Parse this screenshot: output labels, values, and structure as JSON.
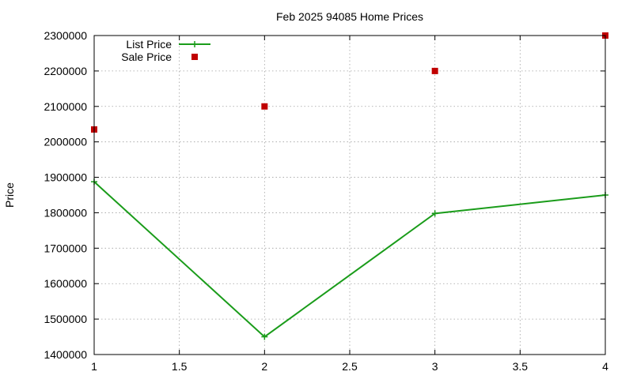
{
  "chart_data": {
    "type": "line",
    "title": "Feb 2025 94085 Home Prices",
    "xlabel": "",
    "ylabel": "Price",
    "xlim": [
      1,
      4
    ],
    "ylim": [
      1400000,
      2300000
    ],
    "xticks": [
      1,
      1.5,
      2,
      2.5,
      3,
      3.5,
      4
    ],
    "xtick_labels": [
      "1",
      "1.5",
      "2",
      "2.5",
      "3",
      "3.5",
      "4"
    ],
    "yticks": [
      1400000,
      1500000,
      1600000,
      1700000,
      1800000,
      1900000,
      2000000,
      2100000,
      2200000,
      2300000
    ],
    "ytick_labels": [
      "1400000",
      "1500000",
      "1600000",
      "1700000",
      "1800000",
      "1900000",
      "2000000",
      "2100000",
      "2200000",
      "2300000"
    ],
    "grid": true,
    "legend_position": "top-left",
    "series": [
      {
        "name": "List Price",
        "style": "linespoints",
        "marker": "plus",
        "color": "#1a9c1a",
        "x": [
          1,
          2,
          3,
          4
        ],
        "y": [
          1887500,
          1450000,
          1798000,
          1850000
        ]
      },
      {
        "name": "Sale Price",
        "style": "points",
        "marker": "square",
        "color": "#c00000",
        "x": [
          1,
          2,
          3,
          4
        ],
        "y": [
          2035000,
          2100000,
          2200000,
          2300000
        ]
      }
    ]
  }
}
